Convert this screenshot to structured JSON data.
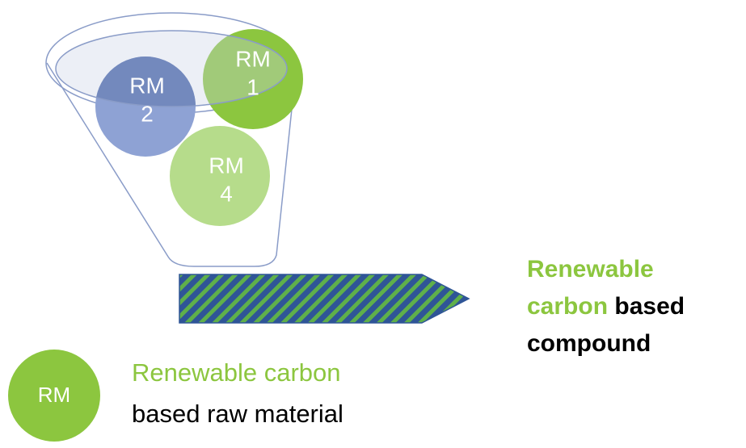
{
  "funnel_items": [
    {
      "label": "RM",
      "number": "2"
    },
    {
      "label": "RM",
      "number": "1"
    },
    {
      "label": "RM",
      "number": "4"
    }
  ],
  "output": {
    "line1": "Renewable",
    "line2_green": "carbon",
    "line2_black": "based",
    "line3": "compound"
  },
  "legend": {
    "symbol": "RM",
    "line1": "Renewable carbon",
    "line2": "based raw material"
  }
}
